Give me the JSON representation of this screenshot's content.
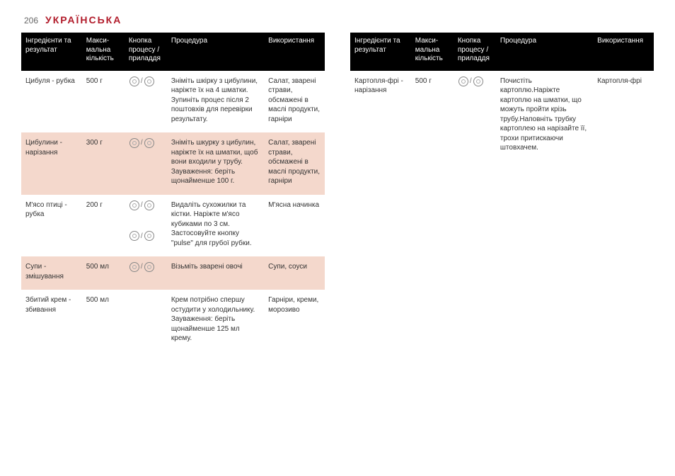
{
  "page_number": "206",
  "lang_title": "УКРАЇНСЬКА",
  "headers": {
    "c1": "Інгредієнти та результат",
    "c2": "Макси-мальна кількість",
    "c3": "Кнопка процесу / приладдя",
    "c4": "Процедура",
    "c5": "Використання"
  },
  "left": [
    {
      "ingredient": "Цибуля - рубка",
      "qty": "500 г",
      "proc": "Зніміть шкірку з цибулини, наріжте їх на 4 шматки. Зупиніть процес після 2 поштовхів для перевірки результату.",
      "use": "Салат, зварені страви, обсмажені в маслі продукти, гарніри",
      "shade": false
    },
    {
      "ingredient": "Цибулини - нарізання",
      "qty": "300 г",
      "proc": "Зніміть шкурку з цибулин, наріжте їх на шматки, щоб вони входили у трубу. Зауваження: беріть щонайменше 100 г.",
      "use": "Салат, зварені страви, обсмажені в маслі продукти, гарніри",
      "shade": true
    },
    {
      "ingredient": "М'ясо птиці - рубка",
      "qty": "200 г",
      "proc": "Видаліть сухожилки та кістки. Наріжте м'ясо кубиками по 3 см. Застосовуйте кнопку \"pulse\" для грубої рубки.",
      "use": "М'ясна начинка",
      "shade": false,
      "tworow": true
    },
    {
      "ingredient": "Супи - змішування",
      "qty": "500 мл",
      "proc": "Візьміть зварені овочі",
      "use": "Супи, соуси",
      "shade": true
    },
    {
      "ingredient": "Збитий крем - збивання",
      "qty": "500 мл",
      "proc": "Крем потрібно спершу остудити у холодильнику. Зауваження: беріть щонайменше 125 мл крему.",
      "use": "Гарніри, креми, морозиво",
      "shade": false
    }
  ],
  "right": [
    {
      "ingredient": "Картопля-фрі - нарізання",
      "qty": "500 г",
      "proc": "Почистіть картоплю.Наріжте картоплю на шматки, що можуть пройти крізь трубу.Наповніть трубку картоплею на нарізайте її, трохи притискаючи штовхачем.",
      "use": "Картопля-фрі",
      "shade": false
    }
  ]
}
